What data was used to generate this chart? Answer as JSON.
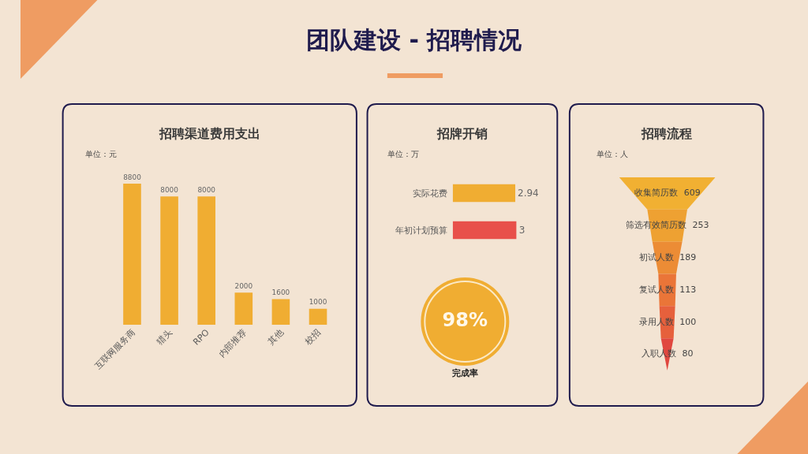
{
  "chart_data": [
    {
      "type": "other",
      "title": "团队建设 - 招聘情况"
    },
    {
      "type": "bar",
      "title": "招聘渠道费用支出",
      "ylabel": "单位：元",
      "categories": [
        "互联网服务商",
        "猎头",
        "RPO",
        "内部推荐",
        "其他",
        "校招"
      ],
      "values": [
        8800,
        8000,
        8000,
        2000,
        1600,
        1000
      ],
      "color": "#f0ad32",
      "data_labels": true,
      "tick_labels": "x"
    },
    {
      "type": "bar",
      "orientation": "horizontal",
      "title": "招牌开销",
      "ylabel": "单位：万",
      "categories": [
        "实际花费",
        "年初计划预算"
      ],
      "values": [
        2.94,
        3
      ],
      "colors": [
        "#f0ad32",
        "#e8504a"
      ],
      "data_labels": true,
      "tick_labels": "y"
    },
    {
      "type": "other",
      "categories": [
        "完成率"
      ],
      "values": [
        98
      ],
      "value_labels": [
        "98%"
      ],
      "color": "#f0ad32"
    },
    {
      "type": "other",
      "title": "招聘流程",
      "ylabel": "单位：人",
      "categories": [
        "收集简历数",
        "筛选有效简历数",
        "初试人数",
        "复试人数",
        "录用人数",
        "入职人数"
      ],
      "values": [
        609,
        253,
        189,
        113,
        100,
        80
      ],
      "colors": [
        "#f1b032",
        "#eea132",
        "#ec8c35",
        "#ea7538",
        "#e6603c",
        "#e0473f"
      ],
      "data_labels": true
    }
  ]
}
